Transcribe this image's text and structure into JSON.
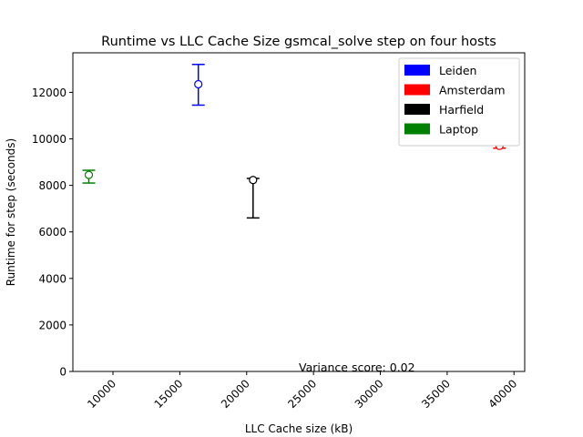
{
  "chart_data": {
    "type": "scatter",
    "title": "Runtime vs LLC Cache Size gsmcal_solve step on four hosts",
    "xlabel": "LLC Cache size (kB)",
    "ylabel": "Runtime for step (seconds)",
    "xlim": [
      7000,
      40800
    ],
    "ylim": [
      0,
      13700
    ],
    "xticks": [
      10000,
      15000,
      20000,
      25000,
      30000,
      35000,
      40000
    ],
    "yticks": [
      0,
      2000,
      4000,
      6000,
      8000,
      10000,
      12000
    ],
    "grid": false,
    "legend_position": "top-right",
    "annotation": "Variance score: 0.02",
    "series": [
      {
        "name": "Leiden",
        "color": "#0000ff",
        "x": 16384,
        "y": 12350,
        "ymin": 11450,
        "ymax": 13200
      },
      {
        "name": "Amsterdam",
        "color": "#ff0000",
        "x": 38912,
        "y": 9700,
        "ymin": 9600,
        "ymax": 9900
      },
      {
        "name": "Harfield",
        "color": "#000000",
        "x": 20480,
        "y": 8230,
        "ymin": 6600,
        "ymax": 8300
      },
      {
        "name": "Laptop",
        "color": "#008000",
        "x": 8192,
        "y": 8450,
        "ymin": 8100,
        "ymax": 8650
      }
    ]
  }
}
